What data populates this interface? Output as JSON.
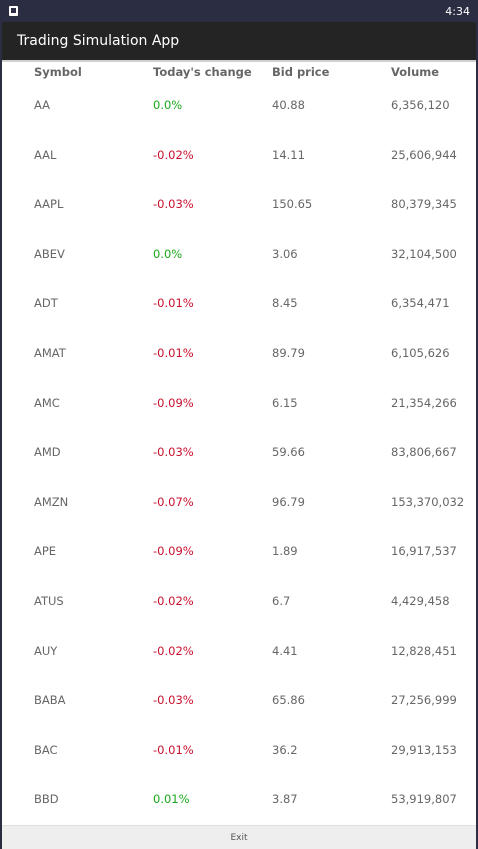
{
  "status": {
    "time": "4:34"
  },
  "app": {
    "title": "Trading Simulation App"
  },
  "table": {
    "headers": [
      "Symbol",
      "Today's change",
      "Bid price",
      "Volume"
    ],
    "rows": [
      {
        "symbol": "AA",
        "change": "0.0%",
        "bid": "40.88",
        "volume": "6,356,120"
      },
      {
        "symbol": "AAL",
        "change": "-0.02%",
        "bid": "14.11",
        "volume": "25,606,944"
      },
      {
        "symbol": "AAPL",
        "change": "-0.03%",
        "bid": "150.65",
        "volume": "80,379,345"
      },
      {
        "symbol": "ABEV",
        "change": "0.0%",
        "bid": "3.06",
        "volume": "32,104,500"
      },
      {
        "symbol": "ADT",
        "change": "-0.01%",
        "bid": "8.45",
        "volume": "6,354,471"
      },
      {
        "symbol": "AMAT",
        "change": "-0.01%",
        "bid": "89.79",
        "volume": "6,105,626"
      },
      {
        "symbol": "AMC",
        "change": "-0.09%",
        "bid": "6.15",
        "volume": "21,354,266"
      },
      {
        "symbol": "AMD",
        "change": "-0.03%",
        "bid": "59.66",
        "volume": "83,806,667"
      },
      {
        "symbol": "AMZN",
        "change": "-0.07%",
        "bid": "96.79",
        "volume": "153,370,032"
      },
      {
        "symbol": "APE",
        "change": "-0.09%",
        "bid": "1.89",
        "volume": "16,917,537"
      },
      {
        "symbol": "ATUS",
        "change": "-0.02%",
        "bid": "6.7",
        "volume": "4,429,458"
      },
      {
        "symbol": "AUY",
        "change": "-0.02%",
        "bid": "4.41",
        "volume": "12,828,451"
      },
      {
        "symbol": "BABA",
        "change": "-0.03%",
        "bid": "65.86",
        "volume": "27,256,999"
      },
      {
        "symbol": "BAC",
        "change": "-0.01%",
        "bid": "36.2",
        "volume": "29,913,153"
      },
      {
        "symbol": "BBD",
        "change": "0.01%",
        "bid": "3.87",
        "volume": "53,919,807"
      }
    ]
  },
  "colors": {
    "positive": "#1aa81a",
    "negative": "#c8102e",
    "text": "#666666"
  },
  "footer": {
    "exit_label": "Exit"
  }
}
